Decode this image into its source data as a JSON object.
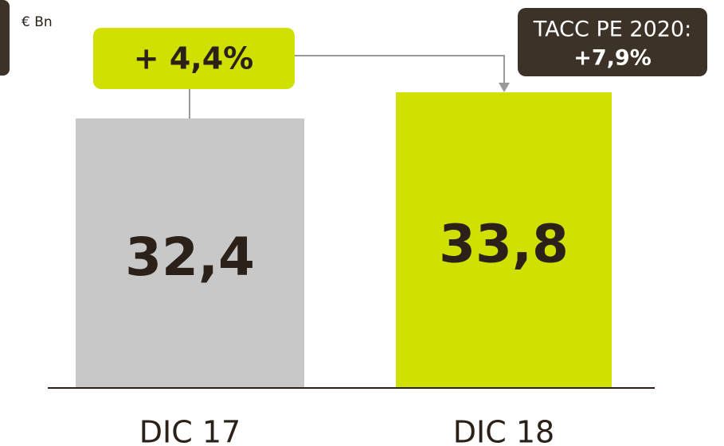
{
  "chart_data": {
    "type": "bar",
    "unit": "€ Bn",
    "categories": [
      "DIC 17",
      "DIC 18"
    ],
    "values": [
      32.4,
      33.8
    ],
    "value_labels": [
      "32,4",
      "33,8"
    ],
    "colors": [
      "#c8c8c8",
      "#d0e000"
    ],
    "ylim": [
      18,
      35
    ],
    "annotations": {
      "growth": "+ 4,4%",
      "cagr_title": "TACC PE 2020:",
      "cagr_value": "+7,9%"
    }
  }
}
